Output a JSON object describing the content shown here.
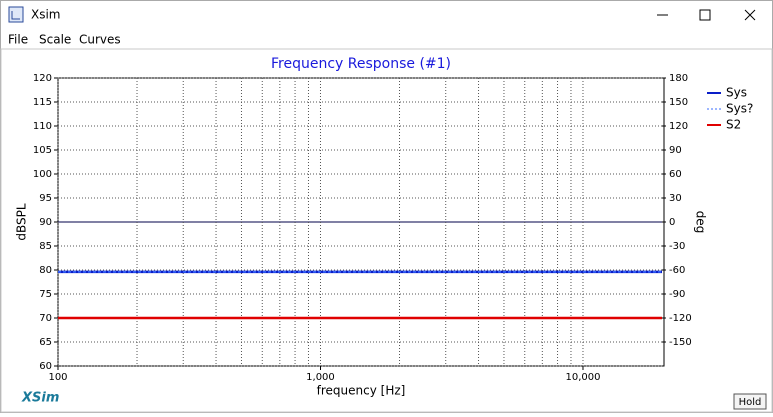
{
  "window": {
    "title": "Xsim",
    "menu": [
      "File",
      "Scale",
      "Curves"
    ],
    "button": "Hold"
  },
  "brand": "XSim",
  "chart_data": {
    "type": "line",
    "title": "Frequency Response (#1)",
    "x_label": "frequency [Hz]",
    "y_label": "dBSPL",
    "y2_label": "deg",
    "x_scale": "log",
    "xlim": [
      100,
      20000
    ],
    "xticks": [
      100,
      {
        "value": 1000,
        "label": "1,000"
      },
      {
        "value": 10000,
        "label": "10,000"
      }
    ],
    "xminorticks": [
      200,
      300,
      400,
      500,
      600,
      700,
      800,
      900,
      2000,
      3000,
      4000,
      5000,
      6000,
      7000,
      8000,
      9000
    ],
    "ylim": [
      60,
      120
    ],
    "yticks": [
      60,
      65,
      70,
      75,
      80,
      85,
      90,
      95,
      100,
      105,
      110,
      115,
      120
    ],
    "y2lim": [
      -180,
      180
    ],
    "y2ticks": [
      -150,
      -120,
      -90,
      -60,
      -30,
      0,
      30,
      60,
      90,
      120,
      150,
      180
    ],
    "grid": true,
    "legend": "right",
    "series": [
      {
        "name": "Sys",
        "color": "#0a1ec8",
        "dash": false,
        "x": [
          100,
          20000
        ],
        "values": [
          79.6,
          79.6
        ]
      },
      {
        "name": "Sys?",
        "color": "#3a6cff",
        "dash": true,
        "x": [
          100,
          20000
        ],
        "values": [
          79.6,
          79.6
        ]
      },
      {
        "name": "S2",
        "color": "#e00000",
        "dash": false,
        "x": [
          100,
          20000
        ],
        "values": [
          70,
          70
        ]
      }
    ]
  }
}
